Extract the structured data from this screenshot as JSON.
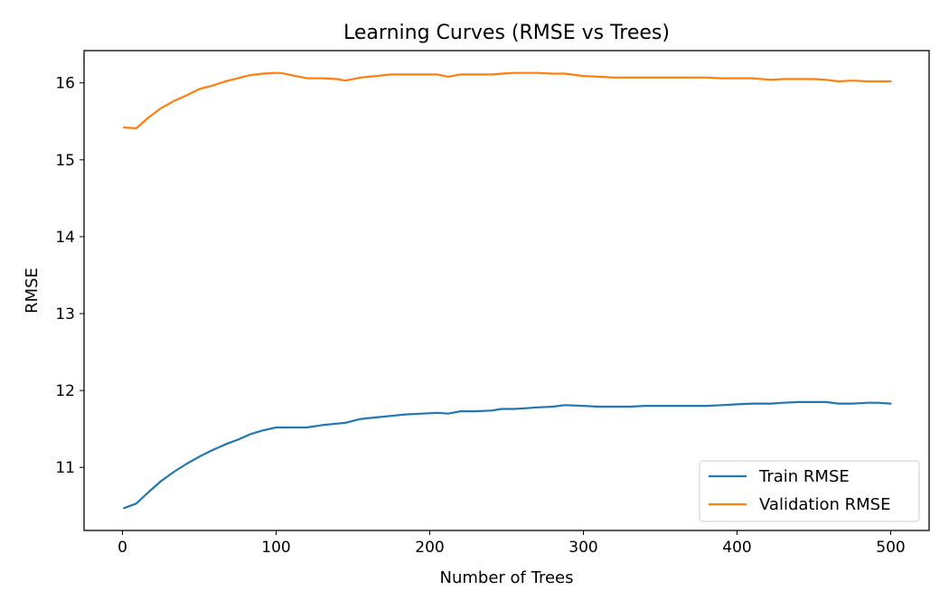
{
  "chart_data": {
    "type": "line",
    "title": "Learning Curves (RMSE vs Trees)",
    "xlabel": "Number of Trees",
    "ylabel": "RMSE",
    "xlim": [
      -25,
      525
    ],
    "ylim": [
      10.18,
      16.42
    ],
    "xticks": [
      0,
      100,
      200,
      300,
      400,
      500
    ],
    "yticks": [
      11,
      12,
      13,
      14,
      15,
      16
    ],
    "grid": false,
    "legend_position": "lower-right",
    "x": [
      1,
      9,
      17,
      25,
      34,
      42,
      50,
      58,
      67,
      75,
      83,
      91,
      100,
      103,
      110,
      120,
      130,
      140,
      145,
      155,
      165,
      175,
      185,
      195,
      205,
      212,
      220,
      230,
      240,
      247,
      255,
      263,
      270,
      280,
      288,
      300,
      310,
      320,
      330,
      340,
      350,
      360,
      370,
      380,
      390,
      400,
      410,
      422,
      430,
      440,
      450,
      458,
      466,
      475,
      485,
      492,
      500
    ],
    "series": [
      {
        "name": "Train RMSE",
        "color": "#1f77b4",
        "values": [
          10.47,
          10.53,
          10.68,
          10.82,
          10.95,
          11.05,
          11.14,
          11.22,
          11.3,
          11.36,
          11.43,
          11.48,
          11.52,
          11.52,
          11.52,
          11.52,
          11.55,
          11.57,
          11.58,
          11.63,
          11.65,
          11.67,
          11.69,
          11.7,
          11.71,
          11.7,
          11.73,
          11.73,
          11.74,
          11.76,
          11.76,
          11.77,
          11.78,
          11.79,
          11.81,
          11.8,
          11.79,
          11.79,
          11.79,
          11.8,
          11.8,
          11.8,
          11.8,
          11.8,
          11.81,
          11.82,
          11.83,
          11.83,
          11.84,
          11.85,
          11.85,
          11.85,
          11.83,
          11.83,
          11.84,
          11.84,
          11.83
        ]
      },
      {
        "name": "Validation RMSE",
        "color": "#ff7f0e",
        "values": [
          15.42,
          15.41,
          15.55,
          15.67,
          15.77,
          15.84,
          15.92,
          15.96,
          16.02,
          16.06,
          16.1,
          16.12,
          16.13,
          16.13,
          16.1,
          16.06,
          16.06,
          16.05,
          16.03,
          16.07,
          16.09,
          16.11,
          16.11,
          16.11,
          16.11,
          16.08,
          16.11,
          16.11,
          16.11,
          16.12,
          16.13,
          16.13,
          16.13,
          16.12,
          16.12,
          16.09,
          16.08,
          16.07,
          16.07,
          16.07,
          16.07,
          16.07,
          16.07,
          16.07,
          16.06,
          16.06,
          16.06,
          16.04,
          16.05,
          16.05,
          16.05,
          16.04,
          16.02,
          16.03,
          16.02,
          16.02,
          16.02
        ]
      }
    ]
  }
}
